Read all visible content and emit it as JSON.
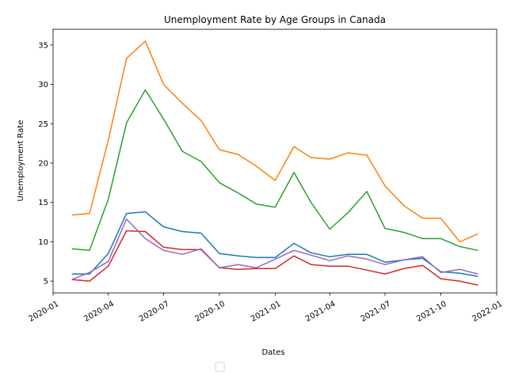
{
  "chart_data": {
    "type": "line",
    "title": "Unemployment Rate by Age Groups in Canada",
    "xlabel": "Dates",
    "ylabel": "Unemployment Rate",
    "x": [
      "2020-02-01",
      "2020-03-01",
      "2020-04-01",
      "2020-05-01",
      "2020-06-01",
      "2020-07-01",
      "2020-08-01",
      "2020-09-01",
      "2020-10-01",
      "2020-11-01",
      "2020-12-01",
      "2021-01-01",
      "2021-02-01",
      "2021-03-01",
      "2021-04-01",
      "2021-05-01",
      "2021-06-01",
      "2021-07-01",
      "2021-08-01",
      "2021-09-01",
      "2021-10-01",
      "2021-11-01",
      "2021-12-01"
    ],
    "xlim": [
      "2020-01-01",
      "2022-01-01"
    ],
    "x_ticks": [
      "2020-01",
      "2020-04",
      "2020-07",
      "2020-10",
      "2021-01",
      "2021-04",
      "2021-07",
      "2021-10",
      "2022-01"
    ],
    "ylim": [
      3.5,
      37
    ],
    "y_ticks": [
      5,
      10,
      15,
      20,
      25,
      30,
      35
    ],
    "legend": "lower-center",
    "grid": false,
    "series": [
      {
        "color": "#1f77b4",
        "values": [
          5.9,
          5.9,
          8.5,
          13.6,
          13.8,
          11.9,
          11.3,
          11.1,
          8.5,
          8.2,
          8.0,
          8.0,
          9.8,
          8.6,
          8.1,
          8.4,
          8.4,
          7.4,
          7.7,
          7.9,
          6.2,
          6.0,
          5.6
        ]
      },
      {
        "color": "#ff7f0e",
        "values": [
          13.4,
          13.6,
          22.9,
          33.3,
          35.5,
          30.0,
          27.6,
          25.4,
          21.7,
          21.1,
          19.6,
          17.8,
          22.1,
          20.7,
          20.5,
          21.3,
          21.0,
          17.1,
          14.6,
          13.0,
          13.0,
          10.0,
          11.0
        ]
      },
      {
        "color": "#2ca02c",
        "values": [
          9.1,
          8.9,
          15.4,
          25.1,
          29.3,
          25.6,
          21.5,
          20.2,
          17.5,
          16.2,
          14.8,
          14.4,
          18.8,
          15.0,
          11.6,
          13.7,
          16.4,
          11.7,
          11.2,
          10.4,
          10.4,
          9.4,
          8.9
        ]
      },
      {
        "color": "#d62728",
        "values": [
          5.2,
          5.0,
          6.9,
          11.4,
          11.3,
          9.3,
          9.0,
          9.0,
          6.7,
          6.5,
          6.6,
          6.6,
          8.2,
          7.1,
          6.9,
          6.9,
          6.4,
          5.9,
          6.6,
          7.0,
          5.3,
          5.0,
          4.5
        ]
      },
      {
        "color": "#9467bd",
        "values": [
          5.2,
          6.1,
          7.5,
          12.9,
          10.4,
          8.9,
          8.4,
          9.1,
          6.7,
          7.1,
          6.7,
          7.8,
          8.9,
          8.3,
          7.6,
          8.2,
          7.8,
          7.1,
          7.7,
          8.1,
          6.1,
          6.5,
          5.9
        ]
      }
    ]
  }
}
